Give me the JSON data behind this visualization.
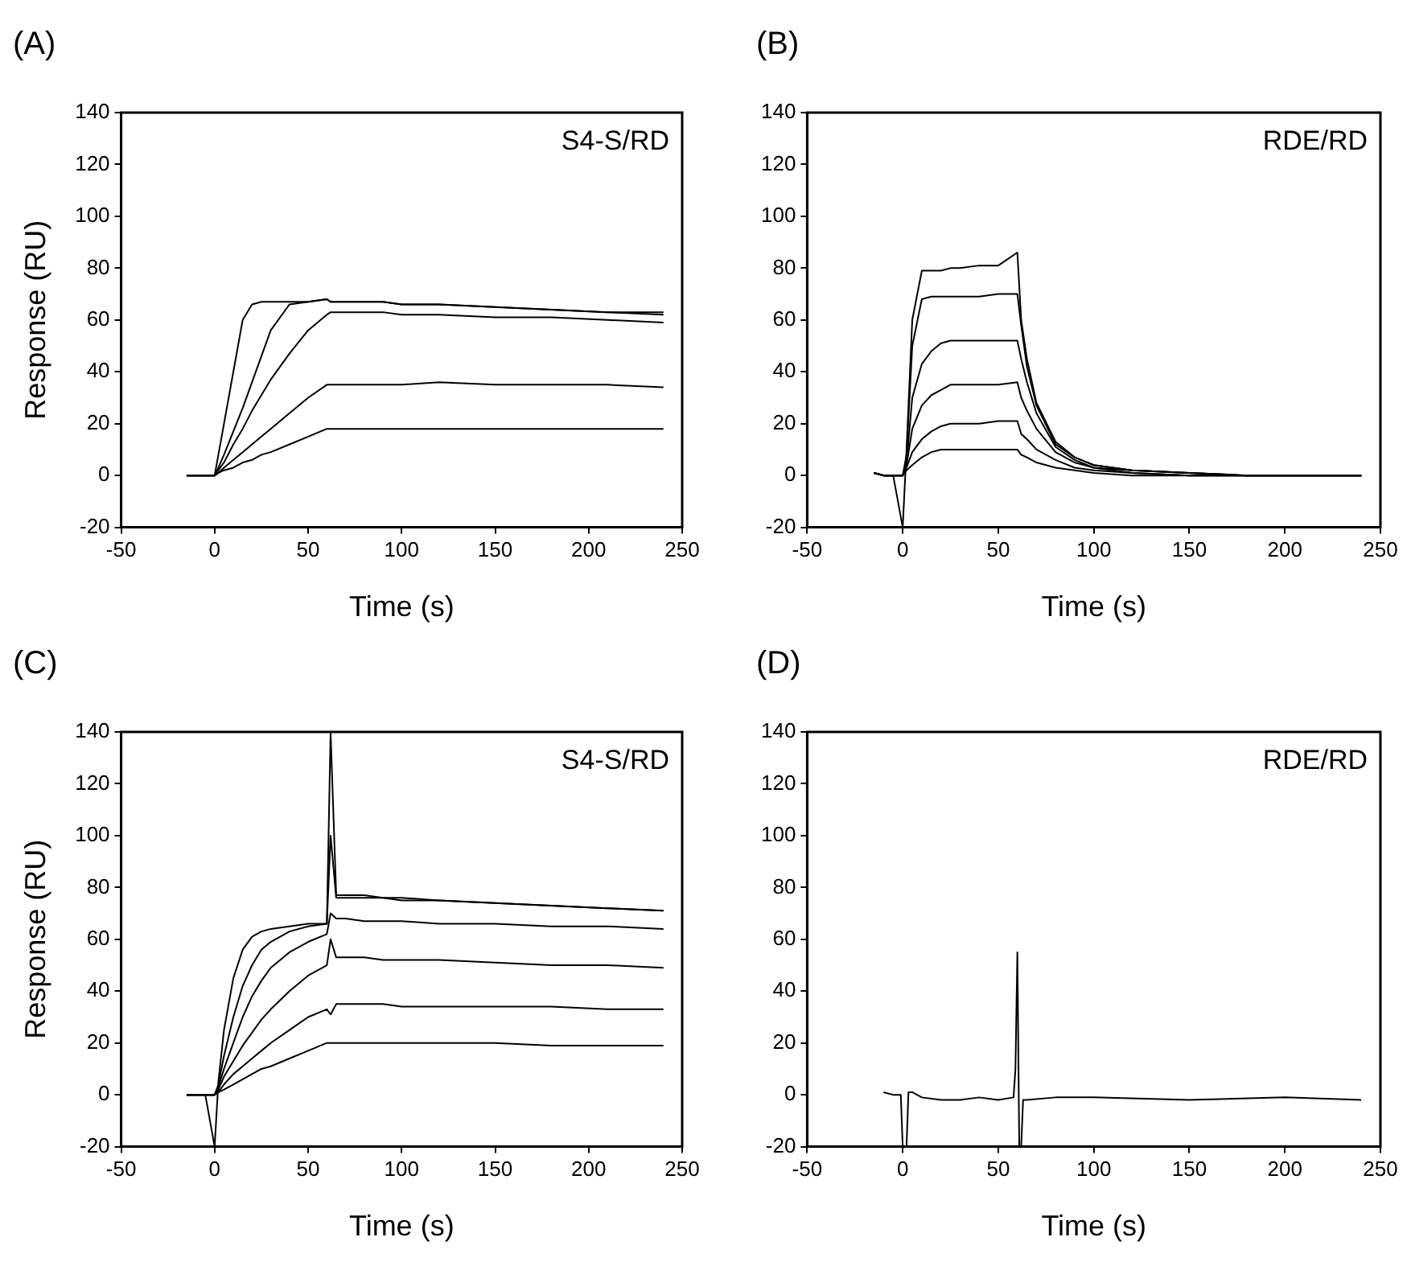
{
  "chart_data": [
    {
      "type": "line",
      "title": "(A)",
      "xlabel": "Time (s)",
      "ylabel": "Response (RU)",
      "annotations": [
        "S4-S/RD"
      ],
      "grid": false,
      "xlim": [
        -50,
        250
      ],
      "xticks": [
        -50,
        0,
        50,
        100,
        150,
        200,
        250
      ],
      "ylim": [
        -20,
        140
      ],
      "yticks": [
        -20,
        0,
        20,
        40,
        60,
        80,
        100,
        120,
        140
      ],
      "x": [
        -15,
        -10,
        -5,
        0,
        2,
        5,
        10,
        15,
        20,
        25,
        30,
        40,
        50,
        60,
        62,
        65,
        70,
        80,
        90,
        100,
        120,
        150,
        180,
        210,
        240
      ],
      "series": [
        {
          "color": "#000000",
          "values": [
            0,
            0,
            0,
            0,
            8,
            20,
            40,
            60,
            66,
            67,
            67,
            67,
            67,
            68,
            67,
            67,
            67,
            67,
            67,
            66,
            66,
            65,
            64,
            63,
            62
          ]
        },
        {
          "color": "#000000",
          "values": [
            0,
            0,
            0,
            0,
            3,
            8,
            17,
            26,
            36,
            46,
            56,
            66,
            67,
            68,
            67,
            67,
            67,
            67,
            67,
            66,
            66,
            65,
            64,
            63,
            63
          ]
        },
        {
          "color": "#000000",
          "values": [
            0,
            0,
            0,
            0,
            2,
            5,
            12,
            18,
            25,
            31,
            37,
            47,
            56,
            62,
            63,
            63,
            63,
            63,
            63,
            62,
            62,
            61,
            61,
            60,
            59
          ]
        },
        {
          "color": "#000000",
          "values": [
            0,
            0,
            0,
            0,
            1,
            3,
            6,
            9,
            12,
            15,
            18,
            24,
            30,
            35,
            35,
            35,
            35,
            35,
            35,
            35,
            36,
            35,
            35,
            35,
            34
          ]
        },
        {
          "color": "#000000",
          "values": [
            0,
            0,
            0,
            0,
            1,
            2,
            3,
            5,
            6,
            8,
            9,
            12,
            15,
            18,
            18,
            18,
            18,
            18,
            18,
            18,
            18,
            18,
            18,
            18,
            18
          ]
        }
      ]
    },
    {
      "type": "line",
      "title": "(B)",
      "xlabel": "Time (s)",
      "annotations": [
        "RDE/RD"
      ],
      "grid": false,
      "xlim": [
        -50,
        250
      ],
      "xticks": [
        -50,
        0,
        50,
        100,
        150,
        200,
        250
      ],
      "ylim": [
        -20,
        140
      ],
      "yticks": [
        -20,
        0,
        20,
        40,
        60,
        80,
        100,
        120,
        140
      ],
      "x": [
        -15,
        -10,
        -5,
        0,
        2,
        5,
        10,
        15,
        20,
        25,
        30,
        40,
        50,
        60,
        62,
        65,
        70,
        80,
        90,
        100,
        120,
        150,
        180,
        210,
        240
      ],
      "series": [
        {
          "color": "#000000",
          "values": [
            1,
            0,
            0,
            -20,
            10,
            60,
            79,
            79,
            79,
            80,
            80,
            81,
            81,
            86,
            60,
            45,
            28,
            13,
            7,
            4,
            2,
            1,
            0,
            0,
            0
          ]
        },
        {
          "color": "#000000",
          "values": [
            1,
            0,
            0,
            0,
            8,
            50,
            68,
            69,
            69,
            69,
            69,
            69,
            70,
            70,
            58,
            42,
            27,
            12,
            7,
            4,
            2,
            1,
            0,
            0,
            0
          ]
        },
        {
          "color": "#000000",
          "values": [
            1,
            0,
            0,
            0,
            5,
            30,
            43,
            48,
            51,
            52,
            52,
            52,
            52,
            52,
            45,
            36,
            24,
            11,
            6,
            3,
            2,
            1,
            0,
            0,
            0
          ]
        },
        {
          "color": "#000000",
          "values": [
            1,
            0,
            0,
            0,
            4,
            18,
            27,
            31,
            33,
            35,
            35,
            35,
            35,
            36,
            30,
            25,
            18,
            9,
            5,
            3,
            1,
            0,
            0,
            0,
            0
          ]
        },
        {
          "color": "#000000",
          "values": [
            1,
            0,
            0,
            0,
            3,
            9,
            14,
            17,
            19,
            20,
            20,
            20,
            21,
            21,
            16,
            14,
            10,
            6,
            3,
            2,
            1,
            0,
            0,
            0,
            0
          ]
        },
        {
          "color": "#000000",
          "values": [
            1,
            0,
            0,
            0,
            2,
            4,
            7,
            9,
            10,
            10,
            10,
            10,
            10,
            10,
            8,
            7,
            5,
            3,
            2,
            1,
            0,
            0,
            0,
            0,
            0
          ]
        }
      ]
    },
    {
      "type": "line",
      "title": "(C)",
      "xlabel": "Time (s)",
      "ylabel": "Response (RU)",
      "annotations": [
        "S4-S/RD"
      ],
      "grid": false,
      "xlim": [
        -50,
        250
      ],
      "xticks": [
        -50,
        0,
        50,
        100,
        150,
        200,
        250
      ],
      "ylim": [
        -20,
        140
      ],
      "yticks": [
        -20,
        0,
        20,
        40,
        60,
        80,
        100,
        120,
        140
      ],
      "x": [
        -15,
        -10,
        -5,
        0,
        2,
        5,
        10,
        15,
        20,
        25,
        30,
        40,
        50,
        60,
        62,
        65,
        70,
        80,
        90,
        100,
        120,
        150,
        180,
        210,
        240
      ],
      "series": [
        {
          "color": "#000000",
          "values": [
            0,
            0,
            0,
            -20,
            5,
            25,
            45,
            56,
            61,
            63,
            64,
            65,
            66,
            66,
            140,
            77,
            77,
            77,
            76,
            76,
            75,
            74,
            73,
            72,
            71
          ]
        },
        {
          "color": "#000000",
          "values": [
            0,
            0,
            0,
            0,
            4,
            15,
            30,
            42,
            50,
            56,
            59,
            63,
            65,
            66,
            100,
            76,
            76,
            76,
            76,
            75,
            75,
            74,
            73,
            72,
            71
          ]
        },
        {
          "color": "#000000",
          "values": [
            0,
            0,
            0,
            0,
            3,
            10,
            20,
            30,
            38,
            44,
            49,
            55,
            59,
            62,
            70,
            68,
            68,
            67,
            67,
            67,
            66,
            66,
            65,
            65,
            64
          ]
        },
        {
          "color": "#000000",
          "values": [
            0,
            0,
            0,
            0,
            2,
            7,
            13,
            19,
            24,
            29,
            33,
            40,
            46,
            50,
            60,
            53,
            53,
            53,
            52,
            52,
            52,
            51,
            50,
            50,
            49
          ]
        },
        {
          "color": "#000000",
          "values": [
            0,
            0,
            0,
            0,
            1,
            4,
            8,
            11,
            14,
            17,
            20,
            25,
            30,
            33,
            31,
            35,
            35,
            35,
            35,
            34,
            34,
            34,
            34,
            33,
            33
          ]
        },
        {
          "color": "#000000",
          "values": [
            0,
            0,
            0,
            0,
            1,
            2,
            4,
            6,
            8,
            10,
            11,
            14,
            17,
            20,
            20,
            20,
            20,
            20,
            20,
            20,
            20,
            20,
            19,
            19,
            19
          ]
        }
      ]
    },
    {
      "type": "line",
      "title": "(D)",
      "xlabel": "Time (s)",
      "annotations": [
        "RDE/RD"
      ],
      "grid": false,
      "xlim": [
        -50,
        250
      ],
      "xticks": [
        -50,
        0,
        50,
        100,
        150,
        200,
        250
      ],
      "ylim": [
        -20,
        140
      ],
      "yticks": [
        -20,
        0,
        20,
        40,
        60,
        80,
        100,
        120,
        140
      ],
      "x": [
        -10,
        -5,
        -1,
        0,
        2,
        3,
        5,
        10,
        20,
        30,
        40,
        50,
        58,
        59,
        60,
        61,
        62,
        63,
        65,
        80,
        100,
        150,
        200,
        240
      ],
      "series": [
        {
          "color": "#000000",
          "values": [
            1,
            0,
            0,
            -20,
            -20,
            1,
            1,
            -1,
            -2,
            -2,
            -1,
            -2,
            -1,
            10,
            55,
            -20,
            -20,
            -2,
            -2,
            -1,
            -1,
            -2,
            -1,
            -2
          ]
        }
      ]
    }
  ]
}
